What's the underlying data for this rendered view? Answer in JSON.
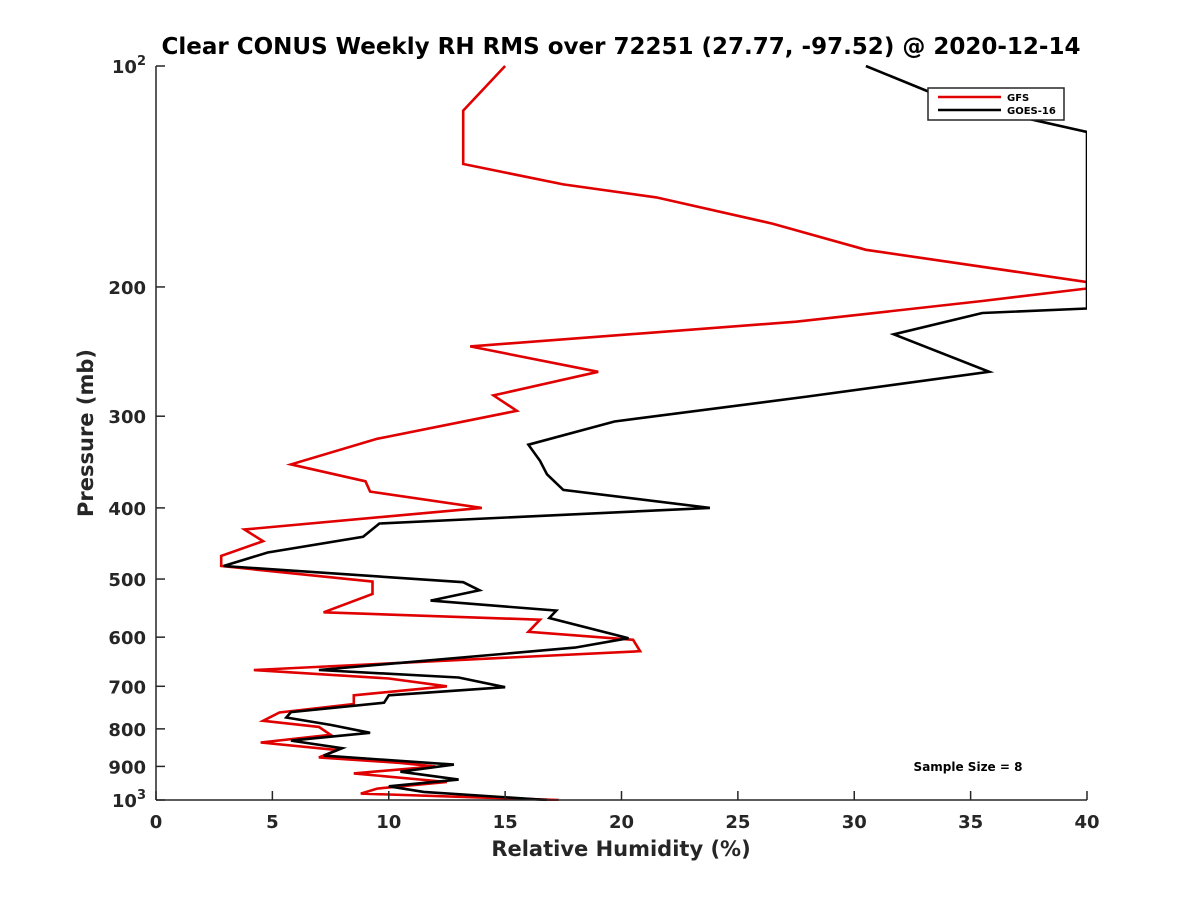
{
  "chart_data": {
    "type": "line",
    "title": "Clear CONUS Weekly RH RMS over 72251 (27.77, -97.52) @ 2020-12-14",
    "xlabel": "Relative Humidity (%)",
    "ylabel": "Pressure (mb)",
    "xlim": [
      0,
      40
    ],
    "ylim": [
      100,
      1000
    ],
    "y_scale": "log",
    "y_reversed": true,
    "grid": false,
    "legend_position": "top-right",
    "x_ticks": [
      0,
      5,
      10,
      15,
      20,
      25,
      30,
      35,
      40
    ],
    "y_ticks": [
      100,
      200,
      300,
      400,
      500,
      600,
      700,
      800,
      900,
      1000
    ],
    "y_tick_labels": [
      {
        "base": "10",
        "exp": "2"
      },
      {
        "base": "200",
        "exp": ""
      },
      {
        "base": "300",
        "exp": ""
      },
      {
        "base": "400",
        "exp": ""
      },
      {
        "base": "500",
        "exp": ""
      },
      {
        "base": "600",
        "exp": ""
      },
      {
        "base": "700",
        "exp": ""
      },
      {
        "base": "800",
        "exp": ""
      },
      {
        "base": "900",
        "exp": ""
      },
      {
        "base": "10",
        "exp": "3"
      }
    ],
    "series": [
      {
        "name": "GFS",
        "color": "#e00000",
        "points": [
          [
            15.0,
            100
          ],
          [
            13.2,
            115
          ],
          [
            13.2,
            136
          ],
          [
            17.5,
            145
          ],
          [
            21.5,
            151
          ],
          [
            26.5,
            164
          ],
          [
            30.5,
            178
          ],
          [
            40.0,
            197
          ],
          [
            40.0,
            201
          ],
          [
            35.5,
            209
          ],
          [
            27.5,
            223
          ],
          [
            13.5,
            241
          ],
          [
            19.0,
            261
          ],
          [
            14.5,
            281
          ],
          [
            15.5,
            295
          ],
          [
            9.5,
            322
          ],
          [
            5.8,
            349
          ],
          [
            9.0,
            368
          ],
          [
            9.2,
            380
          ],
          [
            14.0,
            400
          ],
          [
            3.8,
            428
          ],
          [
            4.6,
            444
          ],
          [
            2.8,
            465
          ],
          [
            2.8,
            480
          ],
          [
            9.3,
            504
          ],
          [
            9.3,
            524
          ],
          [
            7.2,
            555
          ],
          [
            16.5,
            568
          ],
          [
            16.0,
            590
          ],
          [
            20.5,
            605
          ],
          [
            20.8,
            627
          ],
          [
            4.2,
            665
          ],
          [
            10.0,
            683
          ],
          [
            12.5,
            700
          ],
          [
            8.5,
            720
          ],
          [
            8.5,
            740
          ],
          [
            5.3,
            760
          ],
          [
            4.6,
            780
          ],
          [
            7.0,
            795
          ],
          [
            7.5,
            815
          ],
          [
            4.5,
            835
          ],
          [
            7.8,
            855
          ],
          [
            7.0,
            875
          ],
          [
            10.5,
            890
          ],
          [
            12.0,
            900
          ],
          [
            8.5,
            920
          ],
          [
            12.5,
            945
          ],
          [
            9.5,
            965
          ],
          [
            8.8,
            980
          ],
          [
            17.3,
            1000
          ]
        ]
      },
      {
        "name": "GOES-16",
        "color": "#000000",
        "points": [
          [
            30.5,
            100
          ],
          [
            34.3,
            112
          ],
          [
            40.0,
            123
          ],
          [
            40.0,
            214
          ],
          [
            35.5,
            217
          ],
          [
            31.7,
            232
          ],
          [
            35.8,
            261
          ],
          [
            28.0,
            282
          ],
          [
            19.7,
            305
          ],
          [
            16.0,
            328
          ],
          [
            16.5,
            345
          ],
          [
            16.8,
            360
          ],
          [
            17.5,
            378
          ],
          [
            23.8,
            400
          ],
          [
            9.6,
            420
          ],
          [
            8.9,
            438
          ],
          [
            4.8,
            460
          ],
          [
            2.9,
            480
          ],
          [
            13.2,
            505
          ],
          [
            13.9,
            518
          ],
          [
            11.8,
            535
          ],
          [
            17.2,
            552
          ],
          [
            16.9,
            565
          ],
          [
            20.3,
            602
          ],
          [
            18.0,
            620
          ],
          [
            7.0,
            665
          ],
          [
            13.0,
            681
          ],
          [
            15.0,
            702
          ],
          [
            10.0,
            720
          ],
          [
            9.8,
            737
          ],
          [
            5.8,
            759
          ],
          [
            5.6,
            772
          ],
          [
            7.5,
            790
          ],
          [
            9.2,
            810
          ],
          [
            5.8,
            830
          ],
          [
            8.0,
            850
          ],
          [
            7.2,
            870
          ],
          [
            12.8,
            895
          ],
          [
            10.5,
            915
          ],
          [
            13.0,
            938
          ],
          [
            10.0,
            958
          ],
          [
            11.5,
            975
          ],
          [
            16.8,
            1000
          ]
        ]
      }
    ],
    "annotation": "Sample Size = 8"
  }
}
